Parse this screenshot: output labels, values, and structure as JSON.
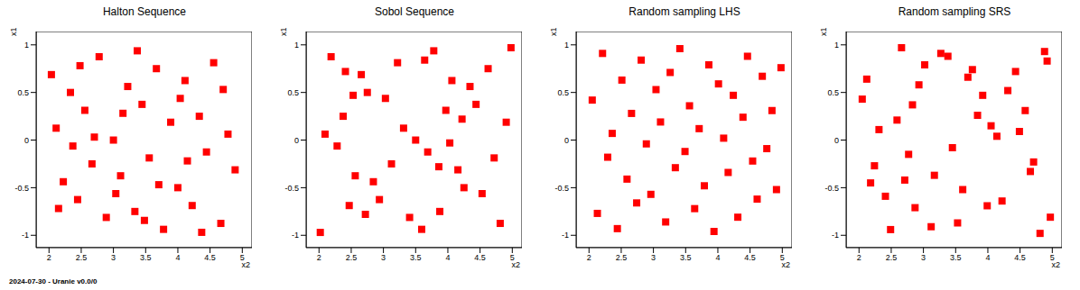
{
  "chart_data": [
    {
      "type": "scatter",
      "title": "Halton Sequence",
      "xlabel": "x2",
      "ylabel": "x1",
      "color": "#ff0000",
      "marker": "square",
      "xlim": [
        1.8,
        5.15
      ],
      "ylim": [
        -1.13,
        1.14
      ],
      "xticks": [
        2,
        2.5,
        3,
        3.5,
        4,
        4.5,
        5
      ],
      "yticks": [
        -1,
        -0.5,
        0,
        0.5,
        1
      ],
      "x": [
        3,
        4,
        2.333,
        3.333,
        4.333,
        2.667,
        3.667,
        4.667,
        2.111,
        3.111,
        4.111,
        2.444,
        3.444,
        4.444,
        2.778,
        3.778,
        4.778,
        2.222,
        3.222,
        4.222,
        2.556,
        3.556,
        4.556,
        2.889,
        3.889,
        4.889,
        2.037,
        3.037,
        4.037,
        2.37,
        3.37,
        4.37,
        2.704,
        3.704,
        4.704,
        2.148,
        3.148,
        4.148,
        2.481,
        3.481
      ],
      "values": [
        0,
        -0.5,
        0.5,
        -0.75,
        0.25,
        -0.25,
        0.75,
        -0.875,
        0.125,
        -0.375,
        0.625,
        -0.625,
        0.375,
        -0.125,
        0.875,
        -0.9375,
        0.0625,
        -0.4375,
        0.5625,
        -0.6875,
        0.3125,
        -0.1875,
        0.8125,
        -0.8125,
        0.1875,
        -0.3125,
        0.6875,
        -0.5625,
        0.4375,
        -0.0625,
        0.9375,
        -0.96875,
        0.03125,
        -0.46875,
        0.53125,
        -0.71875,
        0.28125,
        -0.21875,
        0.78125,
        -0.84375
      ]
    },
    {
      "type": "scatter",
      "title": "Sobol Sequence",
      "xlabel": "x2",
      "ylabel": "x1",
      "color": "#ff0000",
      "marker": "square",
      "xlim": [
        1.8,
        5.15
      ],
      "ylim": [
        -1.13,
        1.14
      ],
      "xticks": [
        2,
        2.5,
        3,
        3.5,
        4,
        4.5,
        5
      ],
      "yticks": [
        -1,
        -0.5,
        0,
        0.5,
        1
      ],
      "x": [
        3.5,
        2.75,
        4.25,
        3.125,
        4.625,
        2.375,
        3.875,
        2.9375,
        4.4375,
        2.1875,
        3.6875,
        2.5625,
        4.0625,
        3.3125,
        4.8125,
        3.40625,
        4.90625,
        2.65625,
        4.15625,
        2.28125,
        3.78125,
        3.03125,
        4.53125,
        2.46875,
        3.96875,
        3.21875,
        4.71875,
        2.84375,
        4.34375,
        2.09375,
        3.59375,
        2.02,
        4.98,
        3.86,
        2.41,
        4.22,
        2.72,
        4.03,
        2.53,
        3.64
      ],
      "values": [
        0,
        0.5,
        -0.5,
        -0.25,
        0.75,
        0.25,
        -0.75,
        -0.625,
        0.375,
        0.875,
        -0.125,
        -0.375,
        0.625,
        0.125,
        -0.875,
        -0.8125,
        0.1875,
        0.6875,
        -0.3125,
        -0.0625,
        0.9375,
        0.4375,
        -0.5625,
        -0.6875,
        0.3125,
        0.8125,
        -0.1875,
        -0.4375,
        0.5625,
        0.0625,
        -0.9375,
        -0.97,
        0.97,
        -0.28,
        0.72,
        0.22,
        -0.78,
        -0.03,
        0.47,
        0.84
      ]
    },
    {
      "type": "scatter",
      "title": "Random sampling LHS",
      "xlabel": "x2",
      "ylabel": "x1",
      "color": "#ff0000",
      "marker": "square",
      "xlim": [
        1.8,
        5.15
      ],
      "ylim": [
        -1.13,
        1.14
      ],
      "xticks": [
        2,
        2.5,
        3,
        3.5,
        4,
        4.5,
        5
      ],
      "yticks": [
        -1,
        -0.5,
        0,
        0.5,
        1
      ],
      "x": [
        2.05,
        2.13,
        2.21,
        2.29,
        2.36,
        2.44,
        2.51,
        2.59,
        2.66,
        2.74,
        2.81,
        2.89,
        2.96,
        3.04,
        3.11,
        3.19,
        3.26,
        3.34,
        3.41,
        3.49,
        3.56,
        3.64,
        3.71,
        3.79,
        3.86,
        3.94,
        4.01,
        4.09,
        4.16,
        4.24,
        4.31,
        4.39,
        4.46,
        4.54,
        4.61,
        4.69,
        4.76,
        4.84,
        4.91,
        4.98
      ],
      "values": [
        0.42,
        -0.77,
        0.91,
        -0.18,
        0.07,
        -0.93,
        0.63,
        -0.41,
        0.28,
        -0.66,
        0.84,
        -0.04,
        -0.57,
        0.53,
        0.19,
        -0.86,
        0.71,
        -0.29,
        0.96,
        -0.12,
        0.36,
        -0.72,
        0.12,
        -0.48,
        0.79,
        -0.96,
        0.59,
        0.02,
        -0.34,
        0.47,
        -0.81,
        0.24,
        0.88,
        -0.22,
        -0.62,
        0.67,
        -0.09,
        0.31,
        -0.52,
        0.76
      ]
    },
    {
      "type": "scatter",
      "title": "Random sampling SRS",
      "xlabel": "x2",
      "ylabel": "x1",
      "color": "#ff0000",
      "marker": "square",
      "xlim": [
        1.8,
        5.15
      ],
      "ylim": [
        -1.13,
        1.14
      ],
      "xticks": [
        2,
        2.5,
        3,
        3.5,
        4,
        4.5,
        5
      ],
      "yticks": [
        -1,
        -0.5,
        0,
        0.5,
        1
      ],
      "x": [
        2.12,
        4.71,
        3.38,
        2.87,
        4.05,
        2.49,
        3.92,
        4.88,
        2.31,
        3.61,
        4.43,
        2.05,
        3.17,
        4.97,
        2.66,
        3.84,
        4.22,
        2.93,
        3.45,
        4.58,
        2.18,
        3.02,
        4.81,
        2.77,
        3.69,
        4.14,
        2.41,
        3.27,
        4.66,
        2.59,
        3.53,
        4.31,
        2.24,
        3.99,
        4.92,
        2.83,
        3.12,
        4.49,
        2.71,
        3.76
      ],
      "values": [
        0.64,
        -0.23,
        0.88,
        -0.71,
        0.15,
        -0.94,
        0.47,
        0.93,
        0.11,
        -0.52,
        0.72,
        0.43,
        -0.37,
        -0.81,
        0.97,
        0.26,
        -0.64,
        0.58,
        -0.08,
        0.31,
        -0.45,
        0.79,
        -0.98,
        -0.15,
        0.66,
        0.04,
        -0.59,
        0.91,
        -0.33,
        0.21,
        -0.87,
        0.52,
        -0.27,
        -0.69,
        0.83,
        0.37,
        -0.91,
        0.09,
        -0.42,
        0.74
      ]
    }
  ],
  "footer": "2024-07-30 - Uranie v0.0/0"
}
